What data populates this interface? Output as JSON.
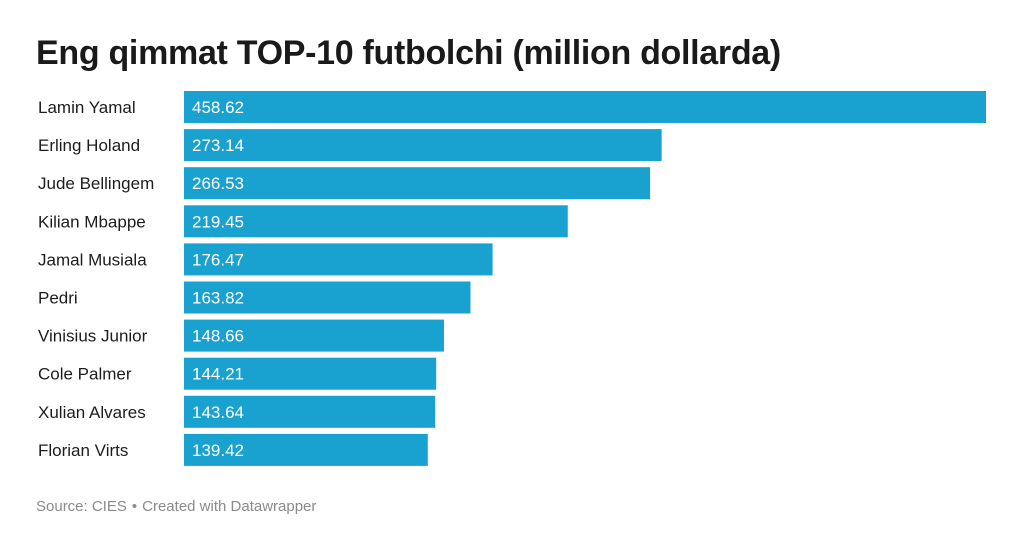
{
  "chart_data": {
    "type": "bar",
    "orientation": "horizontal",
    "title": "Eng qimmat TOP-10 futbolchi (million dollarda)",
    "categories": [
      "Lamin Yamal",
      "Erling Holand",
      "Jude Bellingem",
      "Kilian Mbappe",
      "Jamal Musiala",
      "Pedri",
      "Vinisius Junior",
      "Cole Palmer",
      "Xulian Alvares",
      "Florian Virts"
    ],
    "values": [
      458.62,
      273.14,
      266.53,
      219.45,
      176.47,
      163.82,
      148.66,
      144.21,
      143.64,
      139.42
    ],
    "value_labels": [
      "458.62",
      "273.14",
      "266.53",
      "219.45",
      "176.47",
      "163.82",
      "148.66",
      "144.21",
      "143.64",
      "139.42"
    ],
    "xlim": [
      0,
      458.62
    ],
    "grid": false,
    "legend": "none",
    "bar_color": "#19a1cf",
    "value_label_color": "#ffffff"
  },
  "footer": {
    "source": "Source: CIES",
    "separator": "•",
    "credit": "Created with Datawrapper"
  }
}
